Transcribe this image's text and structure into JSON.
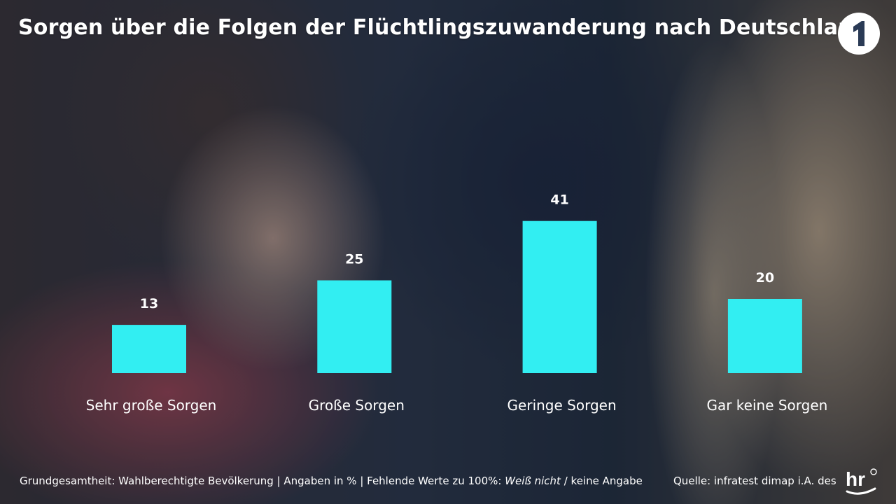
{
  "title": "Sorgen über die Folgen der Flüchtlingszuwanderung nach Deutschland",
  "chart_data": {
    "type": "bar",
    "title": "Sorgen über die Folgen der Flüchtlingszuwanderung nach Deutschland",
    "categories": [
      "Sehr große Sorgen",
      "Große Sorgen",
      "Geringe Sorgen",
      "Gar keine Sorgen"
    ],
    "values": [
      13,
      25,
      41,
      20
    ],
    "xlabel": "",
    "ylabel": "",
    "grid": false,
    "legend": "none",
    "bar_color": "#32eef2"
  },
  "footer": {
    "base_prefix": "Grundgesamtheit: Wahlberechtigte Bevölkerung | Angaben in % | Fehlende Werte zu 100%: ",
    "base_italic": "Weiß nicht",
    "base_suffix": " / keine Angabe",
    "source": "Quelle: infratest dimap i.A. des"
  },
  "logos": {
    "broadcaster": "ard-1-logo",
    "client": "hr-logo",
    "client_text": "hr"
  },
  "colors": {
    "accent": "#32eef2",
    "text": "#ffffff"
  }
}
